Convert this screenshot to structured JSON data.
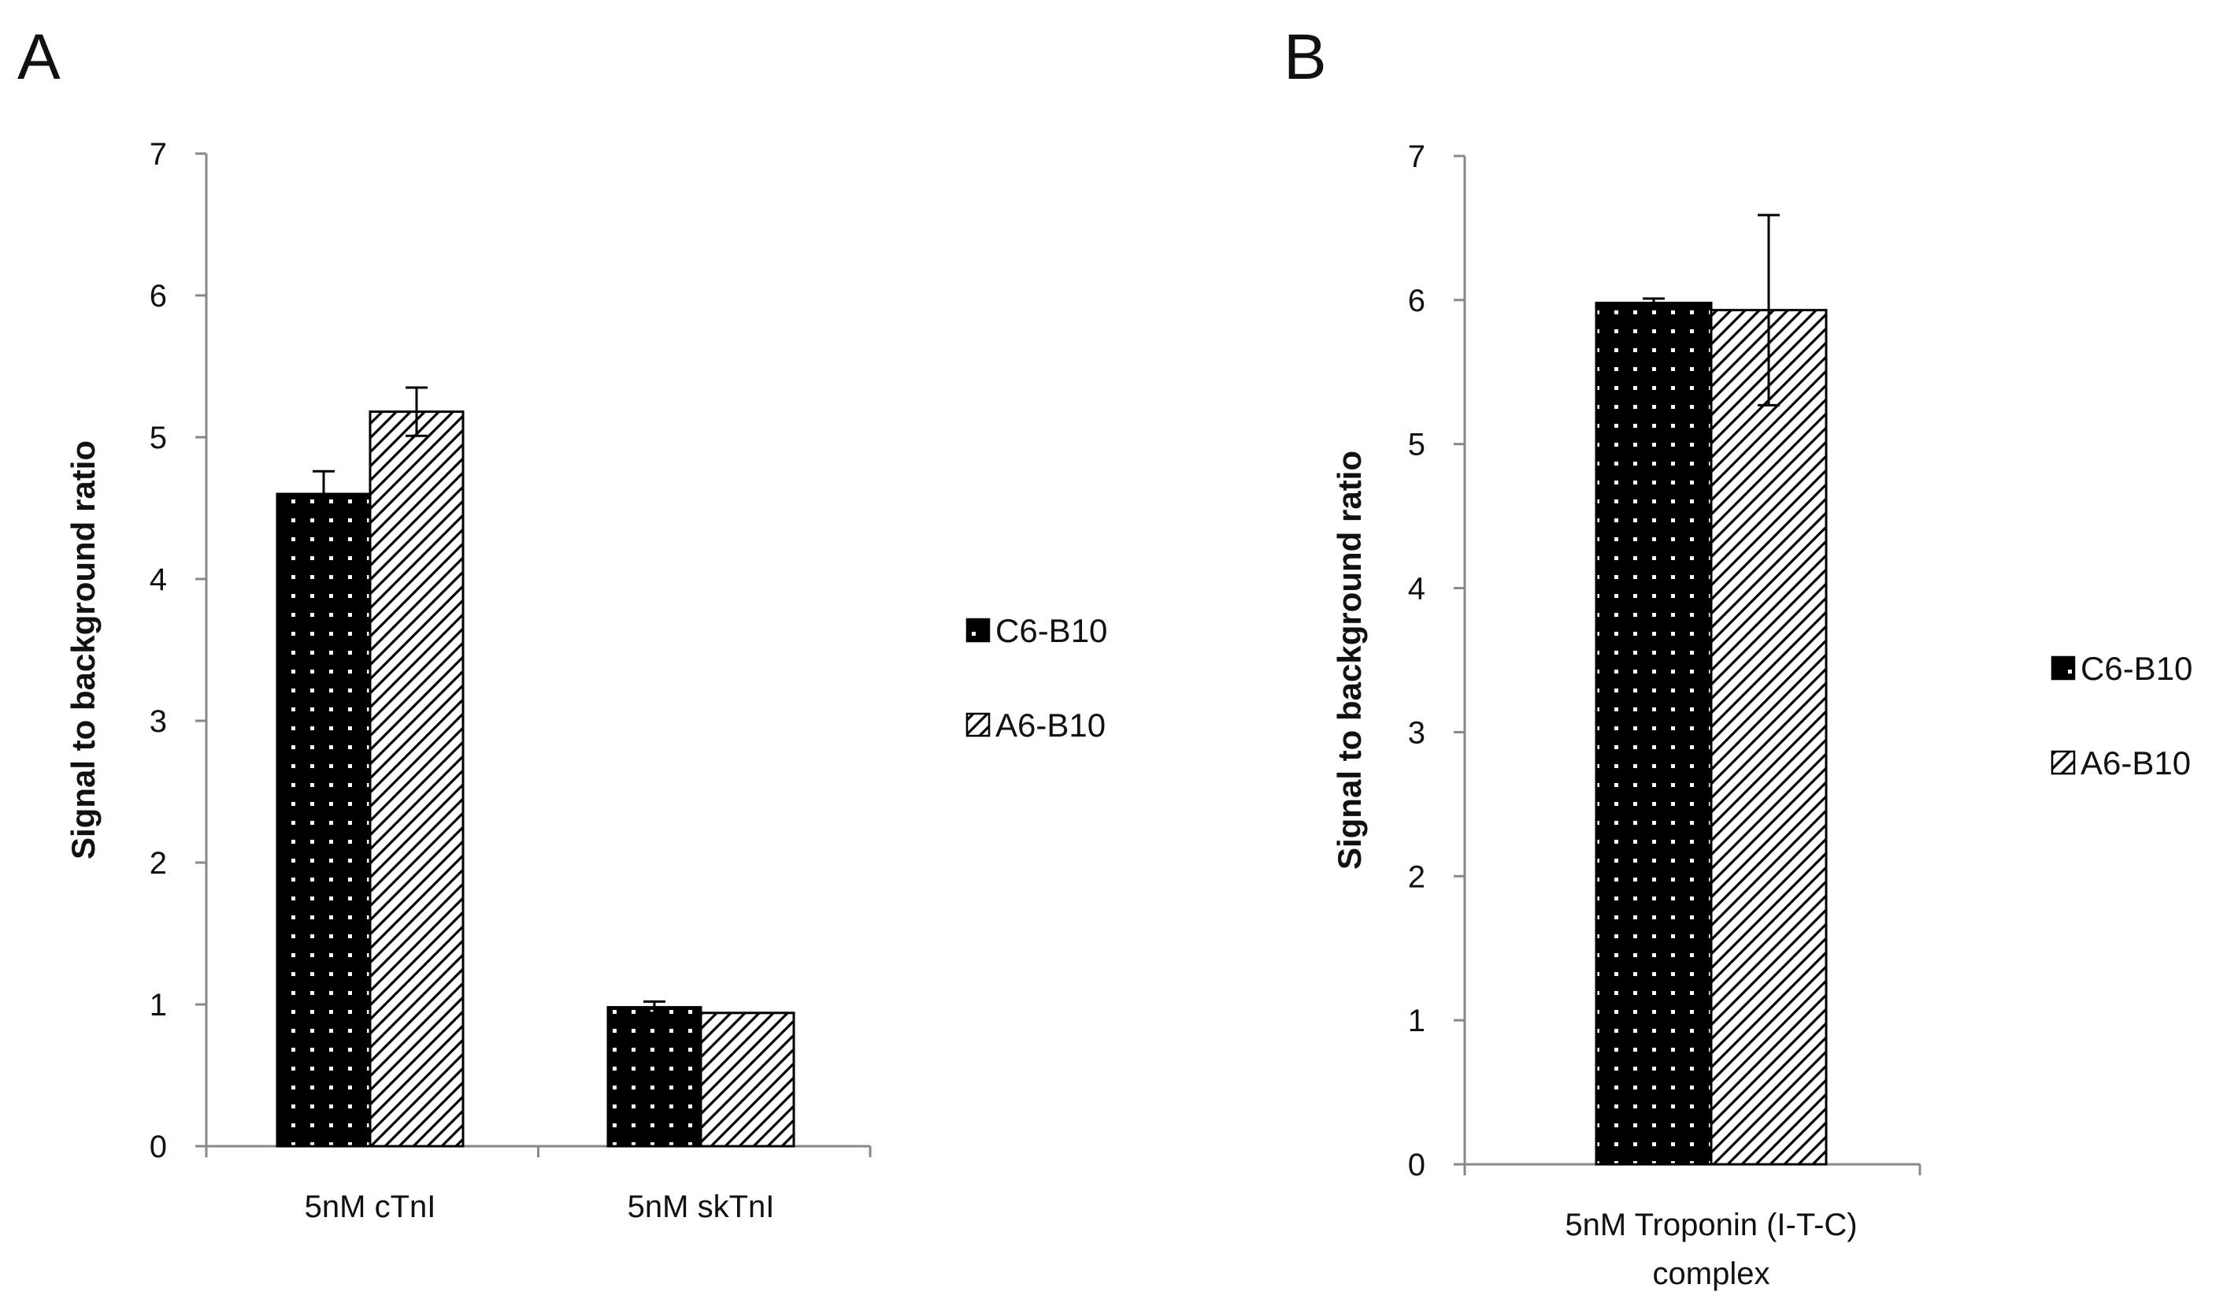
{
  "chart_data": [
    {
      "panel": "A",
      "type": "bar",
      "title": "",
      "xlabel": "",
      "ylabel": "Signal to background ratio",
      "ylim": [
        0,
        7
      ],
      "yticks": [
        "0",
        "1",
        "2",
        "3",
        "4",
        "5",
        "6",
        "7"
      ],
      "grid": false,
      "legend_position": "right",
      "categories": [
        "5nM cTnI",
        "5nM skTnI"
      ],
      "series": [
        {
          "name": "C6-B10",
          "pattern": "dots",
          "values": [
            4.6,
            0.98
          ],
          "errors": [
            0.16,
            0.04
          ]
        },
        {
          "name": "A6-B10",
          "pattern": "hatch",
          "values": [
            5.18,
            0.94
          ],
          "errors": [
            0.17,
            0.0
          ]
        }
      ]
    },
    {
      "panel": "B",
      "type": "bar",
      "title": "",
      "xlabel": "",
      "ylabel": "Signal to background ratio",
      "ylim": [
        0,
        7
      ],
      "yticks": [
        "0",
        "1",
        "2",
        "3",
        "4",
        "5",
        "6",
        "7"
      ],
      "grid": false,
      "legend_position": "right",
      "categories": [
        "5nM Troponin (I-T-C) complex"
      ],
      "category_lines": [
        [
          "5nM Troponin (I-T-C)",
          "complex"
        ]
      ],
      "series": [
        {
          "name": "C6-B10",
          "pattern": "dots",
          "values": [
            5.98
          ],
          "errors": [
            0.03
          ]
        },
        {
          "name": "A6-B10",
          "pattern": "hatch",
          "values": [
            5.93
          ],
          "errors": [
            0.66
          ]
        }
      ]
    }
  ],
  "colors": {
    "bar_dark": "#000000",
    "axis": "#888888",
    "outline": "#000000",
    "background": "#ffffff"
  }
}
